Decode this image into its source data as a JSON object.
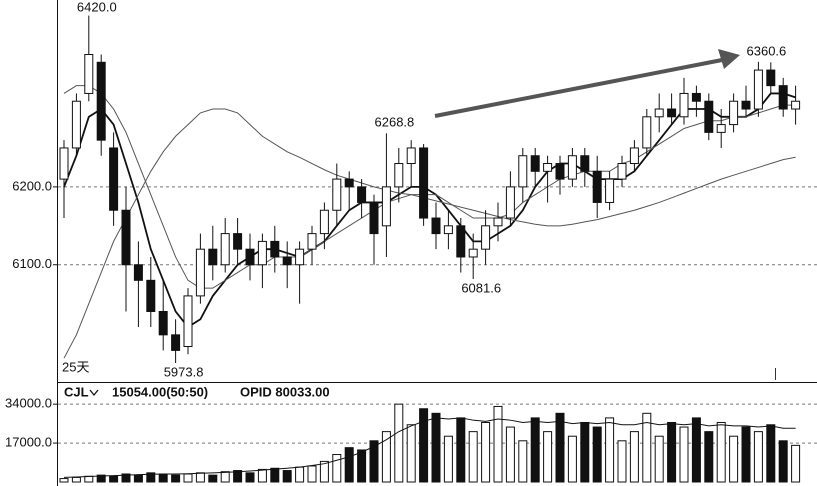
{
  "chart_data": [
    {
      "type": "candlestick",
      "open": [
        6210,
        6250,
        6320,
        6360,
        6250,
        6170,
        6100,
        6080,
        6040,
        6010,
        5995,
        6060,
        6120,
        6100,
        6140,
        6120,
        6100,
        6130,
        6110,
        6100,
        6120,
        6140,
        6170,
        6210,
        6200,
        6180,
        6150,
        6200,
        6230,
        6250,
        6160,
        6140,
        6150,
        6110,
        6120,
        6150,
        6160,
        6200,
        6240,
        6220,
        6230,
        6210,
        6240,
        6220,
        6180,
        6210,
        6230,
        6250,
        6290,
        6300,
        6290,
        6320,
        6310,
        6270,
        6280,
        6310,
        6300,
        6350,
        6330,
        6300
      ],
      "high": [
        6260,
        6320,
        6420,
        6370,
        6270,
        6200,
        6130,
        6110,
        6080,
        6030,
        6070,
        6140,
        6150,
        6160,
        6160,
        6140,
        6140,
        6150,
        6130,
        6130,
        6150,
        6180,
        6230,
        6220,
        6210,
        6190,
        6268.8,
        6250,
        6260,
        6255,
        6180,
        6170,
        6160,
        6140,
        6170,
        6180,
        6220,
        6250,
        6250,
        6240,
        6240,
        6250,
        6250,
        6240,
        6220,
        6240,
        6260,
        6300,
        6320,
        6320,
        6340,
        6330,
        6320,
        6300,
        6320,
        6330,
        6360.6,
        6360,
        6340,
        6330
      ],
      "low": [
        6160,
        6240,
        6310,
        6240,
        6150,
        6040,
        6020,
        6020,
        5990,
        5973.8,
        5985,
        6050,
        6080,
        6090,
        6100,
        6080,
        6070,
        6090,
        6070,
        6050,
        6100,
        6120,
        6150,
        6170,
        6160,
        6100,
        6110,
        6180,
        6200,
        6150,
        6120,
        6120,
        6090,
        6081.6,
        6100,
        6130,
        6150,
        6180,
        6200,
        6180,
        6190,
        6200,
        6200,
        6160,
        6170,
        6200,
        6220,
        6240,
        6270,
        6280,
        6280,
        6290,
        6260,
        6250,
        6270,
        6290,
        6290,
        6320,
        6290,
        6280
      ],
      "close": [
        6250,
        6310,
        6370,
        6260,
        6170,
        6100,
        6080,
        6040,
        6010,
        5990,
        6060,
        6120,
        6100,
        6140,
        6120,
        6100,
        6130,
        6110,
        6100,
        6120,
        6140,
        6170,
        6210,
        6200,
        6180,
        6140,
        6200,
        6230,
        6250,
        6160,
        6140,
        6150,
        6110,
        6120,
        6150,
        6160,
        6200,
        6240,
        6220,
        6230,
        6210,
        6240,
        6220,
        6180,
        6210,
        6230,
        6250,
        6290,
        6300,
        6290,
        6320,
        6310,
        6270,
        6280,
        6310,
        6300,
        6350,
        6330,
        6300,
        6310
      ],
      "lines": [
        {
          "color": "#111111",
          "values": [
            6200,
            6240,
            6290,
            6300,
            6280,
            6230,
            6180,
            6120,
            6080,
            6040,
            6020,
            6030,
            6060,
            6080,
            6100,
            6110,
            6120,
            6120,
            6115,
            6110,
            6120,
            6130,
            6150,
            6170,
            6180,
            6180,
            6180,
            6190,
            6200,
            6200,
            6190,
            6170,
            6150,
            6130,
            6130,
            6140,
            6150,
            6170,
            6200,
            6220,
            6230,
            6230,
            6220,
            6210,
            6210,
            6210,
            6220,
            6240,
            6260,
            6280,
            6300,
            6300,
            6300,
            6290,
            6290,
            6290,
            6300,
            6320,
            6320,
            6315
          ]
        },
        {
          "color": "#555555",
          "values": [
            6320,
            6330,
            6330,
            6320,
            6300,
            6270,
            6230,
            6190,
            6150,
            6110,
            6080,
            6070,
            6070,
            6080,
            6090,
            6100,
            6100,
            6110,
            6110,
            6110,
            6120,
            6130,
            6140,
            6150,
            6160,
            6170,
            6180,
            6185,
            6190,
            6190,
            6190,
            6180,
            6170,
            6160,
            6160,
            6160,
            6165,
            6180,
            6190,
            6200,
            6210,
            6215,
            6220,
            6220,
            6220,
            6230,
            6235,
            6245,
            6255,
            6265,
            6275,
            6280,
            6285,
            6285,
            6290,
            6290,
            6295,
            6300,
            6305,
            6305
          ]
        },
        {
          "color": "#555555",
          "values": [
            5980,
            6010,
            6050,
            6090,
            6130,
            6160,
            6190,
            6220,
            6245,
            6265,
            6280,
            6295,
            6300,
            6300,
            6295,
            6280,
            6265,
            6255,
            6245,
            6238,
            6230,
            6222,
            6215,
            6210,
            6205,
            6200,
            6196,
            6192,
            6190,
            6186,
            6182,
            6178,
            6174,
            6170,
            6166,
            6162,
            6158,
            6155,
            6152,
            6150,
            6150,
            6152,
            6155,
            6158,
            6162,
            6166,
            6170,
            6175,
            6180,
            6186,
            6192,
            6198,
            6204,
            6210,
            6215,
            6220,
            6225,
            6230,
            6235,
            6238
          ]
        }
      ],
      "annotations": [
        {
          "label": "6420.0",
          "value": 6420
        },
        {
          "label": "6268.8",
          "value": 6268.8
        },
        {
          "label": "6360.6",
          "value": 6360.6
        },
        {
          "label": "6081.6",
          "value": 6081.6
        },
        {
          "label": "5973.8",
          "value": 5973.8
        }
      ],
      "period_label": "25天",
      "ylim": [
        5952,
        6440
      ],
      "yticks": [
        {
          "value": 6100,
          "label": "6100.0"
        },
        {
          "value": 6200,
          "label": "6200.0"
        }
      ],
      "grid": true
    },
    {
      "type": "volume",
      "indicator": "CJL",
      "value_text": "15054.00(50:50)",
      "opid_text": "OPID 80033.00",
      "values": [
        1500,
        2000,
        2500,
        3000,
        2500,
        3500,
        3000,
        4000,
        3500,
        3000,
        3500,
        4000,
        3000,
        4500,
        5000,
        4000,
        5500,
        6000,
        5000,
        6500,
        7000,
        9000,
        12000,
        15000,
        14000,
        18000,
        22000,
        34000,
        25000,
        32000,
        30000,
        20000,
        28000,
        22000,
        26000,
        33000,
        24000,
        18000,
        28000,
        22000,
        30000,
        20000,
        26000,
        24000,
        28000,
        18000,
        22000,
        30000,
        20000,
        26000,
        24000,
        28000,
        22000,
        26000,
        20000,
        24000,
        22000,
        25000,
        18000,
        16000
      ],
      "line": {
        "color": "#111111",
        "values": [
          2000,
          2200,
          2400,
          2600,
          2800,
          3000,
          3200,
          3400,
          3500,
          3500,
          3600,
          3800,
          4000,
          4200,
          4500,
          4800,
          5200,
          5600,
          6000,
          6500,
          7200,
          8000,
          9500,
          11000,
          13000,
          15500,
          18500,
          22000,
          24500,
          26500,
          28000,
          27500,
          28000,
          27000,
          26500,
          27500,
          27000,
          26000,
          26500,
          26000,
          26500,
          25500,
          26000,
          25500,
          26000,
          25000,
          25000,
          26000,
          25000,
          25500,
          25000,
          25500,
          24500,
          25000,
          24500,
          24500,
          24000,
          24500,
          23500,
          23500
        ]
      },
      "ylim": [
        0,
        38000
      ],
      "yticks": [
        {
          "value": 17000,
          "label": "17000.0"
        },
        {
          "value": 34000,
          "label": "34000.0"
        }
      ],
      "grid": true
    }
  ]
}
